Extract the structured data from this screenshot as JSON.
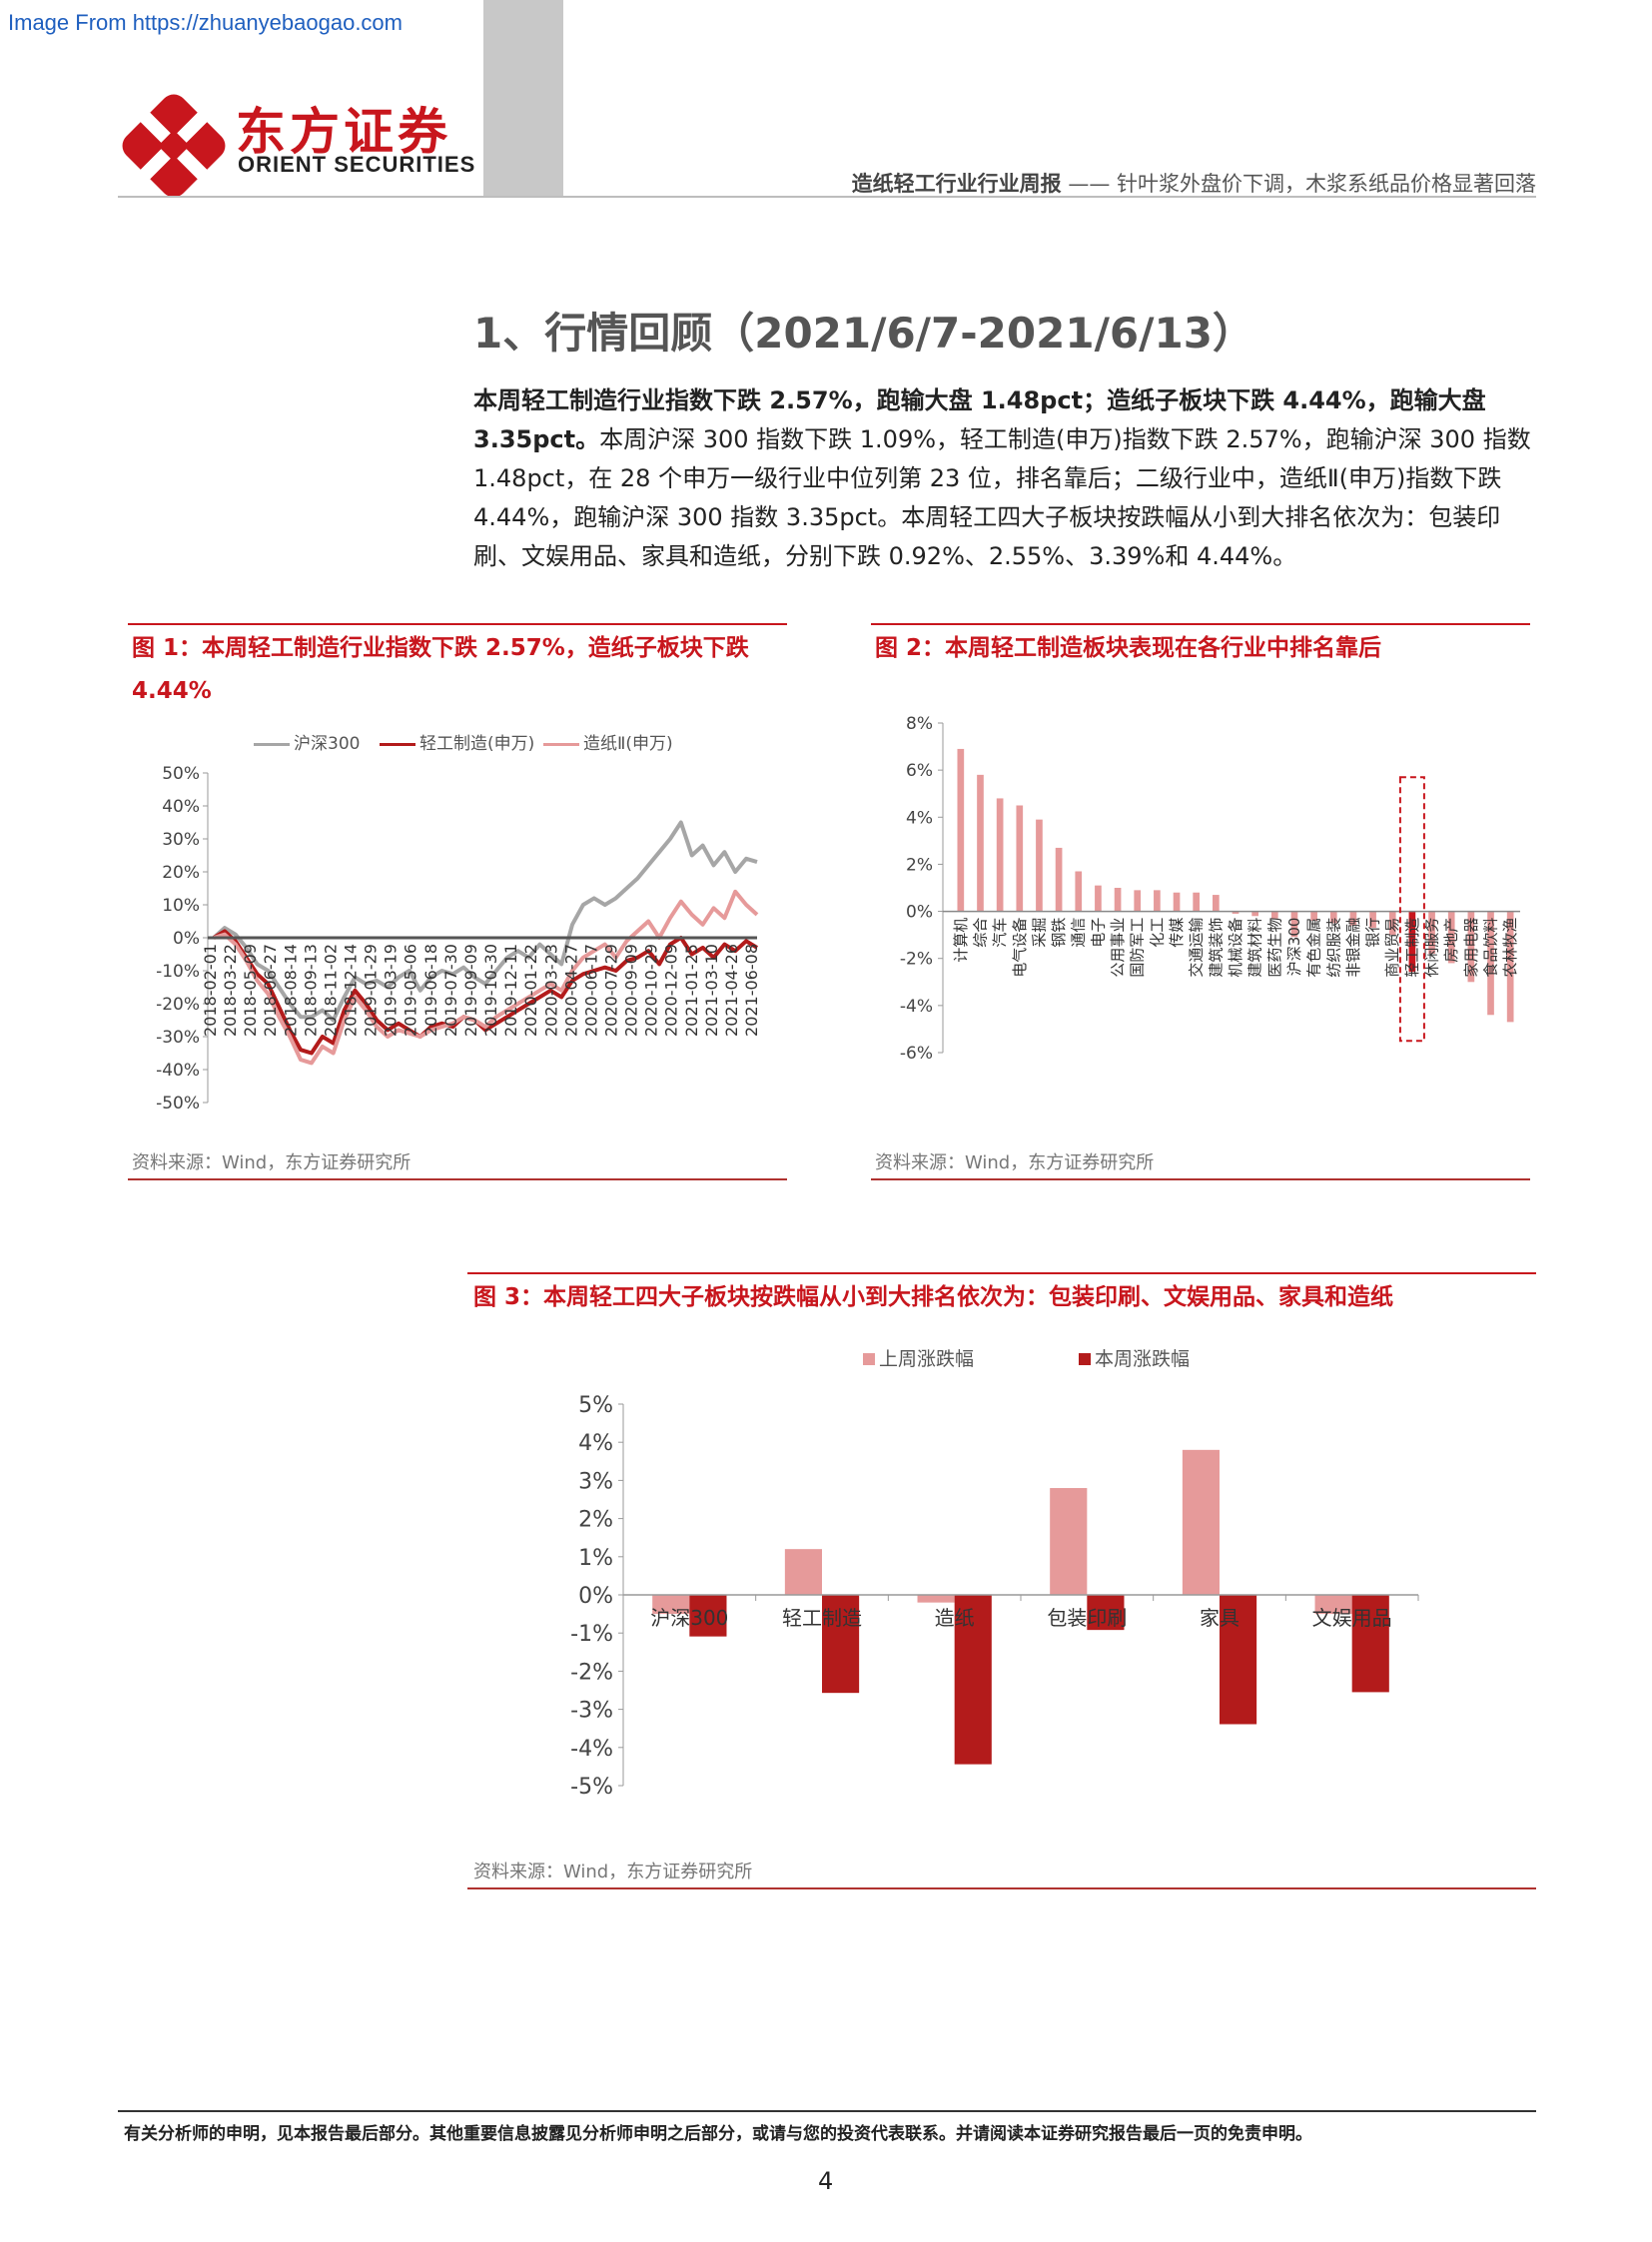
{
  "watermark": "Image From https://zhuanyebaogao.com",
  "brand": {
    "name_cn": "东方证券",
    "name_en": "ORIENT SECURITIES"
  },
  "header": {
    "report": "造纸轻工行业行业周报",
    "dash": "——",
    "subtitle": "针叶浆外盘价下调，木浆系纸品价格显著回落"
  },
  "section": {
    "heading": "1、行情回顾（2021/6/7-2021/6/13）"
  },
  "intro": {
    "bold": "本周轻工制造行业指数下跌 2.57%，跑输大盘 1.48pct；造纸子板块下跌 4.44%，跑输大盘 3.35pct。",
    "body": "本周沪深 300 指数下跌 1.09%，轻工制造(申万)指数下跌 2.57%，跑输沪深 300 指数 1.48pct，在 28 个申万一级行业中位列第 23 位，排名靠后；二级行业中，造纸Ⅱ(申万)指数下跌 4.44%，跑输沪深 300 指数 3.35pct。本周轻工四大子板块按跌幅从小到大排名依次为：包装印刷、文娱用品、家具和造纸，分别下跌 0.92%、2.55%、3.39%和 4.44%。"
  },
  "figures": {
    "fig1": {
      "title": "图 1：本周轻工制造行业指数下跌 2.57%，造纸子板块下跌 4.44%",
      "source": "资料来源：Wind，东方证券研究所"
    },
    "fig2": {
      "title": "图 2：本周轻工制造板块表现在各行业中排名靠后",
      "source": "资料来源：Wind，东方证券研究所"
    },
    "fig3": {
      "title": "图 3：本周轻工四大子板块按跌幅从小到大排名依次为：包装印刷、文娱用品、家具和造纸",
      "source": "资料来源：Wind，东方证券研究所"
    }
  },
  "chart_data": [
    {
      "type": "line",
      "series": [
        {
          "name": "沪深300",
          "color": "#a6a6a6",
          "values": [
            0,
            3,
            1,
            -3,
            -8,
            -10,
            -15,
            -20,
            -24,
            -24,
            -22,
            -25,
            -18,
            -12,
            -14,
            -13,
            -15,
            -12,
            -10,
            -16,
            -12,
            -10,
            -11,
            -9,
            -12,
            -14,
            -10,
            -6,
            -4,
            -6,
            -2,
            -5,
            -8,
            4,
            10,
            12,
            10,
            12,
            15,
            18,
            22,
            26,
            30,
            35,
            25,
            28,
            22,
            26,
            20,
            24,
            23
          ]
        },
        {
          "name": "轻工制造(申万)",
          "color": "#b31b1b",
          "values": [
            0,
            2,
            -1,
            -6,
            -11,
            -14,
            -21,
            -28,
            -34,
            -35,
            -30,
            -32,
            -22,
            -16,
            -20,
            -25,
            -28,
            -26,
            -28,
            -30,
            -27,
            -26,
            -27,
            -24,
            -25,
            -28,
            -26,
            -24,
            -22,
            -20,
            -18,
            -16,
            -18,
            -13,
            -11,
            -10,
            -9,
            -10,
            -7,
            -6,
            -4,
            -8,
            -2,
            0,
            -5,
            -3,
            -6,
            -2,
            -4,
            -1,
            -3
          ]
        },
        {
          "name": "造纸Ⅱ(申万)",
          "color": "#e69a9a",
          "values": [
            0,
            1,
            -2,
            -7,
            -13,
            -17,
            -24,
            -30,
            -37,
            -38,
            -33,
            -35,
            -25,
            -18,
            -22,
            -27,
            -30,
            -28,
            -29,
            -30,
            -28,
            -27,
            -26,
            -24,
            -25,
            -27,
            -24,
            -22,
            -20,
            -18,
            -16,
            -14,
            -16,
            -10,
            -6,
            -4,
            -2,
            -6,
            -1,
            2,
            5,
            0,
            6,
            11,
            7,
            4,
            9,
            6,
            14,
            10,
            7
          ]
        }
      ],
      "x_ticks": [
        "2018-02-01",
        "2018-03-22",
        "2018-05-09",
        "2018-06-27",
        "2018-08-14",
        "2018-09-13",
        "2018-11-02",
        "2018-12-14",
        "2019-01-29",
        "2019-03-19",
        "2019-05-06",
        "2019-06-18",
        "2019-07-30",
        "2019-09-09",
        "2019-10-30",
        "2019-12-11",
        "2020-01-22",
        "2020-03-23",
        "2020-04-27",
        "2020-06-17",
        "2020-07-29",
        "2020-09-09",
        "2020-10-29",
        "2020-12-09",
        "2021-01-25",
        "2021-03-10",
        "2021-04-26",
        "2021-06-08"
      ],
      "y_ticks": [
        "50%",
        "40%",
        "30%",
        "20%",
        "10%",
        "0%",
        "-10%",
        "-20%",
        "-30%",
        "-40%",
        "-50%"
      ],
      "ylim": [
        -50,
        50
      ]
    },
    {
      "type": "bar",
      "color": "#e69a9a",
      "highlight": "轻工制造",
      "highlight_color": "#c8161d",
      "categories": [
        "计算机",
        "综合",
        "汽车",
        "电气设备",
        "采掘",
        "钢铁",
        "通信",
        "电子",
        "公用事业",
        "国防军工",
        "化工",
        "传媒",
        "交通运输",
        "建筑装饰",
        "机械设备",
        "建筑材料",
        "医药生物",
        "沪深300",
        "有色金属",
        "纺织服装",
        "非银金融",
        "银行",
        "商业贸易",
        "轻工制造",
        "休闲服务",
        "房地产",
        "家用电器",
        "食品饮料",
        "农林牧渔"
      ],
      "values": [
        6.9,
        5.8,
        4.8,
        4.5,
        3.9,
        2.7,
        1.7,
        1.1,
        1.0,
        0.9,
        0.9,
        0.8,
        0.8,
        0.7,
        -0.1,
        -0.2,
        -0.3,
        -1.09,
        -0.4,
        -0.5,
        -0.6,
        -0.7,
        -1.0,
        -2.57,
        -1.8,
        -2.2,
        -3.0,
        -4.4,
        -4.7
      ],
      "y_ticks": [
        "8%",
        "6%",
        "4%",
        "2%",
        "0%",
        "-2%",
        "-4%",
        "-6%"
      ],
      "ylim": [
        -6,
        8
      ]
    },
    {
      "type": "bar",
      "categories": [
        "沪深300",
        "轻工制造",
        "造纸",
        "包装印刷",
        "家具",
        "文娱用品"
      ],
      "series": [
        {
          "name": "上周涨跌幅",
          "color": "#e69a9a",
          "values": [
            -0.5,
            1.2,
            -0.2,
            2.8,
            3.8,
            -0.5
          ]
        },
        {
          "name": "本周涨跌幅",
          "color": "#b31b1b",
          "values": [
            -1.09,
            -2.57,
            -4.44,
            -0.92,
            -3.39,
            -2.55
          ]
        }
      ],
      "y_ticks": [
        "5%",
        "4%",
        "3%",
        "2%",
        "1%",
        "0%",
        "-1%",
        "-2%",
        "-3%",
        "-4%",
        "-5%"
      ],
      "ylim": [
        -5,
        5
      ]
    }
  ],
  "footer": {
    "disclaimer": "有关分析师的申明，见本报告最后部分。其他重要信息披露见分析师申明之后部分，或请与您的投资代表联系。并请阅读本证券研究报告最后一页的免责申明。",
    "page": "4"
  }
}
